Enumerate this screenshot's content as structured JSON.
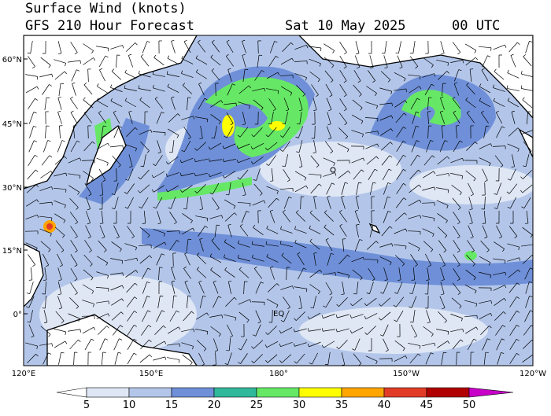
{
  "header": {
    "title": "Surface Wind (knots)",
    "subtitle": "GFS 210 Hour Forecast",
    "date": "Sat 10 May 2025",
    "time": "00 UTC"
  },
  "lat_labels": [
    "60°N",
    "45°N",
    "30°N",
    "15°N",
    "0°"
  ],
  "lon_labels": [
    "120°E",
    "150°E",
    "180°",
    "150°W",
    "120°W"
  ],
  "map_labels": {
    "equator": "EQ"
  },
  "colorbar": {
    "labels": [
      "5",
      "10",
      "15",
      "20",
      "25",
      "30",
      "35",
      "40",
      "45",
      "50"
    ],
    "colors": [
      "#ffffff",
      "#dfe7f5",
      "#b3c6ea",
      "#6f90d8",
      "#30b89a",
      "#66e866",
      "#ffff00",
      "#ffa500",
      "#e03c28",
      "#b00000",
      "#c800c8"
    ]
  }
}
